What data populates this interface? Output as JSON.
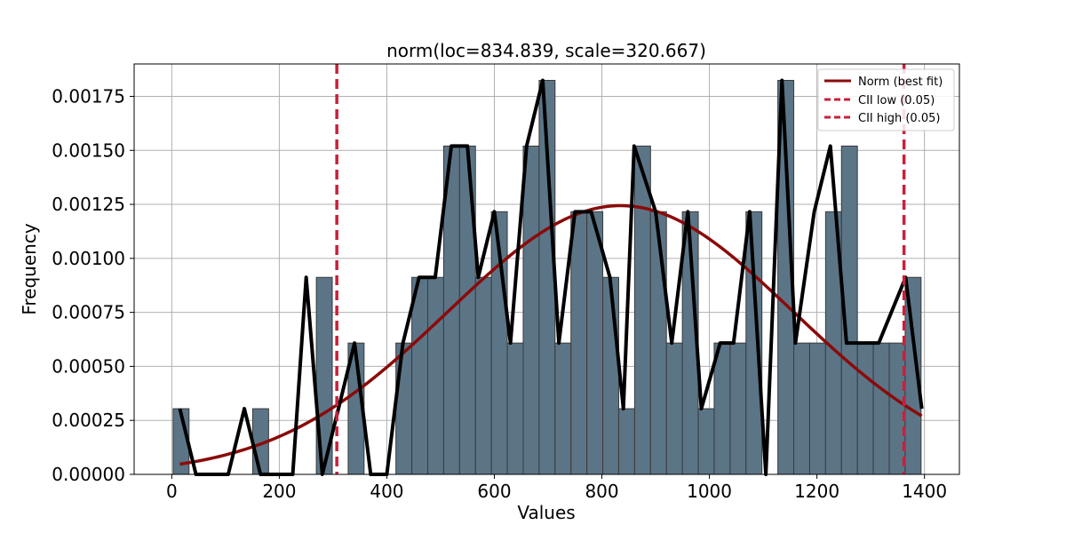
{
  "chart_data": {
    "type": "bar",
    "title": "norm(loc=834.839, scale=320.667)",
    "xlabel": "Values",
    "ylabel": "Frequency",
    "xlim": [
      -70,
      1465
    ],
    "ylim": [
      0,
      0.0019
    ],
    "xticks": [
      0,
      200,
      400,
      600,
      800,
      1000,
      1200,
      1400
    ],
    "yticks": [
      0.0,
      0.00025,
      0.0005,
      0.00075,
      0.001,
      0.00125,
      0.0015,
      0.00175
    ],
    "ytick_labels": [
      "0.00000",
      "0.00025",
      "0.00050",
      "0.00075",
      "0.00100",
      "0.00125",
      "0.00150",
      "0.00175"
    ],
    "grid": true,
    "legend_position": "top-right",
    "histogram": {
      "color": "#5b7587",
      "edge_color": "#3a3a3a",
      "bin_start": 2.5,
      "bin_width": 29.6,
      "values": [
        0.000304,
        0,
        0,
        0,
        0,
        0.000304,
        0,
        0,
        0,
        0.000912,
        0,
        0.000608,
        0,
        0,
        0.000608,
        0.000912,
        0.000912,
        0.00152,
        0.00152,
        0.000912,
        0.001216,
        0.000608,
        0.00152,
        0.001824,
        0.000608,
        0.001216,
        0.001216,
        0.000912,
        0.000304,
        0.00152,
        0.001216,
        0.000608,
        0.001216,
        0.000304,
        0.000608,
        0.000608,
        0.001216,
        0,
        0.001824,
        0.000608,
        0.000608,
        0.001216,
        0.00152,
        0.000608,
        0.000608,
        0.000608,
        0.000912
      ]
    },
    "kde_line": {
      "color": "#000000",
      "x": [
        15,
        45,
        75,
        105,
        135,
        165,
        195,
        225,
        250,
        280,
        340,
        370,
        400,
        430,
        460,
        490,
        520,
        550,
        570,
        600,
        630,
        660,
        690,
        720,
        750,
        780,
        815,
        840,
        860,
        900,
        930,
        960,
        985,
        1020,
        1045,
        1075,
        1105,
        1135,
        1160,
        1195,
        1225,
        1255,
        1285,
        1315,
        1365,
        1395
      ],
      "y": [
        0.000304,
        0,
        0,
        0,
        0.000304,
        0,
        0,
        0,
        0.000912,
        0,
        0.000608,
        0,
        0,
        0.000608,
        0.000912,
        0.000912,
        0.00152,
        0.00152,
        0.000912,
        0.001216,
        0.000608,
        0.00152,
        0.001824,
        0.000608,
        0.001216,
        0.001216,
        0.000912,
        0.000304,
        0.00152,
        0.001216,
        0.000608,
        0.001216,
        0.000304,
        0.000608,
        0.000608,
        0.001216,
        0,
        0.001824,
        0.000608,
        0.001216,
        0.00152,
        0.000608,
        0.000608,
        0.000608,
        0.000912,
        0.000304
      ]
    },
    "fit": {
      "name": "Norm (best fit)",
      "color": "#8b0a0a",
      "loc": 834.839,
      "scale": 320.667,
      "x_range": [
        15,
        1395
      ]
    },
    "ci_lines": [
      {
        "name": "CII low (0.05)",
        "x": 307,
        "color": "#c8203c"
      },
      {
        "name": "CII high (0.05)",
        "x": 1362,
        "color": "#c8203c"
      }
    ]
  }
}
